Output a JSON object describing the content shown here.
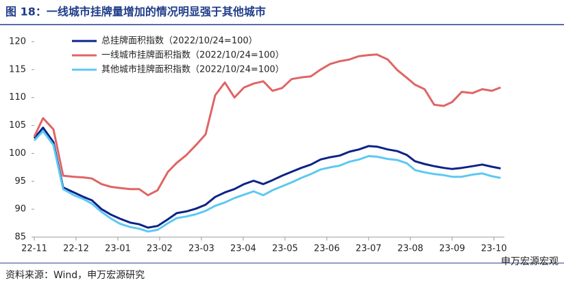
{
  "chart_data": {
    "type": "line",
    "title": "图 18：一线城市挂牌量增加的情况明显强于其他城市",
    "source": "资料来源：Wind，申万宏源研究",
    "watermark": "申万宏源宏观",
    "x": [
      0,
      0.21,
      0.46,
      0.69,
      0.95,
      1.18,
      1.38,
      1.61,
      1.84,
      2.05,
      2.3,
      2.51,
      2.72,
      2.95,
      3.2,
      3.41,
      3.64,
      3.87,
      4.1,
      4.33,
      4.56,
      4.79,
      5.02,
      5.25,
      5.48,
      5.7,
      5.93,
      6.16,
      6.39,
      6.62,
      6.85,
      7.08,
      7.31,
      7.54,
      7.77,
      8,
      8.2,
      8.46,
      8.69,
      8.92,
      9.11,
      9.34,
      9.57,
      9.8,
      10,
      10.23,
      10.49,
      10.72,
      10.95,
      11.16
    ],
    "xlim": [
      0,
      11.25
    ],
    "xticks": [
      {
        "value": 0,
        "label": "22-11"
      },
      {
        "value": 1,
        "label": "22-12"
      },
      {
        "value": 2,
        "label": "23-01"
      },
      {
        "value": 3,
        "label": "23-02"
      },
      {
        "value": 4,
        "label": "23-03"
      },
      {
        "value": 5,
        "label": "23-04"
      },
      {
        "value": 6,
        "label": "23-05"
      },
      {
        "value": 7,
        "label": "23-06"
      },
      {
        "value": 8,
        "label": "23-07"
      },
      {
        "value": 9,
        "label": "23-08"
      },
      {
        "value": 10,
        "label": "23-09"
      },
      {
        "value": 11,
        "label": "23-10"
      }
    ],
    "ylim": [
      85,
      120
    ],
    "yticks": [
      85,
      90,
      95,
      100,
      105,
      110,
      115,
      120
    ],
    "legend": "upper left",
    "series": [
      {
        "name": "总挂牌面积指数（2022/10/24=100）",
        "color": "#0b2287",
        "values": [
          102.7,
          104.6,
          102,
          93.9,
          93,
          92.2,
          91.6,
          90,
          89,
          88.3,
          87.6,
          87.3,
          86.7,
          87,
          88.2,
          89.3,
          89.6,
          90.1,
          90.8,
          92.2,
          93,
          93.6,
          94.5,
          95.1,
          94.5,
          95.2,
          96,
          96.7,
          97.4,
          98,
          98.9,
          99.3,
          99.6,
          100.3,
          100.7,
          101.3,
          101.2,
          100.7,
          100.4,
          99.7,
          98.6,
          98.1,
          97.7,
          97.4,
          97.2,
          97.4,
          97.7,
          98,
          97.6,
          97.3
        ]
      },
      {
        "name": "一线城市挂牌面积指数（2022/10/24=100）",
        "color": "#e06464",
        "values": [
          103,
          106.3,
          104.3,
          96,
          95.8,
          95.7,
          95.5,
          94.5,
          94,
          93.8,
          93.6,
          93.6,
          92.5,
          93.4,
          96.7,
          98.3,
          99.7,
          101.5,
          103.4,
          110.4,
          112.7,
          110,
          111.8,
          112.5,
          112.9,
          111.2,
          111.7,
          113.3,
          113.6,
          113.8,
          115,
          116,
          116.5,
          116.8,
          117.4,
          117.6,
          117.7,
          116.8,
          114.9,
          113.5,
          112.3,
          111.5,
          108.7,
          108.5,
          109.2,
          111,
          110.8,
          111.5,
          111.2,
          111.8
        ]
      },
      {
        "name": "其他城市挂牌面积指数（2022/10/24=100）",
        "color": "#5cc8f2",
        "values": [
          102.3,
          104,
          101.5,
          93.6,
          92.5,
          91.8,
          91,
          89.5,
          88.3,
          87.4,
          86.8,
          86.5,
          86,
          86.3,
          87.5,
          88.4,
          88.7,
          89.1,
          89.7,
          90.6,
          91.2,
          92,
          92.6,
          93.2,
          92.5,
          93.4,
          94.1,
          94.8,
          95.6,
          96.3,
          97.1,
          97.5,
          97.8,
          98.5,
          98.9,
          99.5,
          99.4,
          99,
          98.8,
          98.2,
          97,
          96.6,
          96.3,
          96.1,
          95.8,
          95.8,
          96.2,
          96.4,
          95.9,
          95.6
        ]
      }
    ]
  }
}
